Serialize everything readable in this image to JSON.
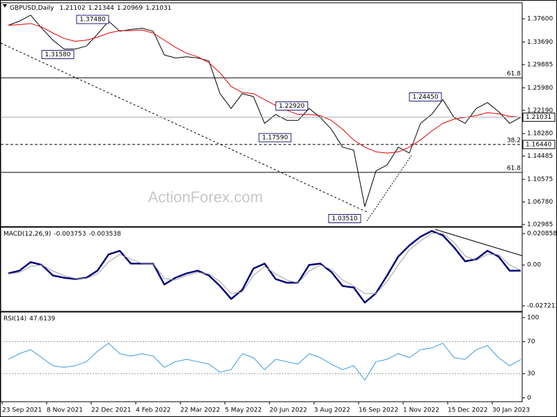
{
  "chart_data": [
    {
      "type": "line",
      "title": "GBPUSD,Daily",
      "ohlc": [
        1.21102,
        1.21344,
        1.20969,
        1.21031
      ],
      "watermark": "ActionForex.com",
      "ylim": [
        1.0275,
        1.4017
      ],
      "yticks": [
        {
          "value": 1.376,
          "label": "1.37600"
        },
        {
          "value": 1.3369,
          "label": "1.33690"
        },
        {
          "value": 1.29885,
          "label": "1.29885"
        },
        {
          "value": 1.2598,
          "label": "1.25980"
        },
        {
          "value": 1.2219,
          "label": "1.22190"
        },
        {
          "value": 1.1828,
          "label": "1.18280"
        },
        {
          "value": 1.14485,
          "label": "1.14485"
        },
        {
          "value": 1.10575,
          "label": "1.10575"
        },
        {
          "value": 1.0678,
          "label": "1.06780"
        },
        {
          "value": 1.02985,
          "label": "1.02985"
        }
      ],
      "series": [
        {
          "name": "Close",
          "color": "#000000",
          "values": [
            1.365,
            1.372,
            1.382,
            1.36,
            1.34,
            1.325,
            1.325,
            1.33,
            1.35,
            1.372,
            1.355,
            1.358,
            1.36,
            1.355,
            1.315,
            1.31,
            1.312,
            1.31,
            1.305,
            1.25,
            1.225,
            1.25,
            1.245,
            1.2,
            1.215,
            1.205,
            1.205,
            1.225,
            1.21,
            1.19,
            1.16,
            1.155,
            1.06,
            1.12,
            1.13,
            1.16,
            1.15,
            1.2,
            1.215,
            1.24,
            1.21,
            1.2,
            1.225,
            1.235,
            1.22,
            1.2,
            1.21031
          ]
        },
        {
          "name": "MA",
          "color": "#e00000",
          "values": [
            1.365,
            1.366,
            1.368,
            1.362,
            1.352,
            1.343,
            1.338,
            1.34,
            1.345,
            1.352,
            1.356,
            1.356,
            1.357,
            1.352,
            1.34,
            1.328,
            1.318,
            1.312,
            1.302,
            1.285,
            1.262,
            1.252,
            1.25,
            1.24,
            1.23,
            1.222,
            1.215,
            1.215,
            1.213,
            1.205,
            1.19,
            1.172,
            1.16,
            1.152,
            1.15,
            1.152,
            1.16,
            1.172,
            1.187,
            1.2,
            1.207,
            1.21,
            1.213,
            1.218,
            1.216,
            1.212,
            1.21
          ]
        }
      ],
      "annotations": [
        {
          "label": "1.37480",
          "value": 1.3748
        },
        {
          "label": "1.31580",
          "value": 1.3158
        },
        {
          "label": "1.22920",
          "value": 1.2292
        },
        {
          "label": "1.17590",
          "value": 1.1759
        },
        {
          "label": "1.24450",
          "value": 1.2445
        },
        {
          "label": "1.03510",
          "value": 1.0351
        }
      ],
      "levels": [
        {
          "label": "61.8",
          "value": 1.2766,
          "style": "solid"
        },
        {
          "label": "38.2",
          "value": 1.1644,
          "style": "dashed"
        },
        {
          "label": "61.8",
          "value": 1.1176,
          "style": "solid"
        }
      ],
      "markers": [
        {
          "value": 1.1644,
          "label": "1.16440"
        }
      ]
    },
    {
      "type": "line",
      "title": "MACD(12,26,9)",
      "ylim": [
        -0.0304,
        0.0246
      ],
      "yticks": [
        0.020858,
        {
          "value": 0,
          "label": "0.00"
        },
        -0.027213
      ],
      "series": [
        {
          "name": "MACD",
          "color": "#00007a",
          "values": [
            -0.0056,
            -0.0038,
            0.0019,
            0,
            -0.007,
            -0.0085,
            -0.0094,
            -0.0085,
            -0.0038,
            0.007,
            0.0094,
            0.0009,
            0.0009,
            0.0009,
            -0.013,
            -0.0085,
            -0.0056,
            -0.0038,
            -0.007,
            -0.014,
            -0.0226,
            -0.0165,
            -0.0024,
            0.0009,
            -0.0094,
            -0.0118,
            -0.0118,
            0,
            0.0009,
            -0.0047,
            -0.014,
            -0.015,
            -0.025,
            -0.0188,
            -0.007,
            0.0056,
            0.013,
            0.0188,
            0.0226,
            0.0197,
            0.0118,
            0.0024,
            0.0038,
            0.0094,
            0.0056,
            -0.0038,
            -0.003753
          ]
        },
        {
          "name": "Signal",
          "color": "#a0a0a0",
          "values": [
            -0.006,
            -0.005,
            -0.001,
            0,
            -0.004,
            -0.007,
            -0.009,
            -0.009,
            -0.006,
            0.002,
            0.007,
            0.004,
            0.001,
            0.001,
            -0.009,
            -0.01,
            -0.007,
            -0.005,
            -0.006,
            -0.011,
            -0.019,
            -0.018,
            -0.007,
            -0.001,
            -0.006,
            -0.01,
            -0.012,
            -0.004,
            0,
            -0.003,
            -0.01,
            -0.014,
            -0.019,
            -0.019,
            -0.011,
            0,
            0.01,
            0.016,
            0.021,
            0.021,
            0.015,
            0.006,
            0.003,
            0.007,
            0.007,
            0,
            -0.003538
          ]
        }
      ]
    },
    {
      "type": "line",
      "title": "RSI(14)",
      "ylim": [
        -4,
        106
      ],
      "yticks": [
        100,
        70,
        30,
        0
      ],
      "guides": [
        70,
        30
      ],
      "categories": [
        null,
        "23 Sep 2021",
        null,
        null,
        null,
        "8 Nov 2021",
        null,
        null,
        null,
        "22 Dec 2021",
        null,
        null,
        null,
        "4 Feb 2022",
        null,
        null,
        null,
        "22 Mar 2022",
        null,
        null,
        null,
        "5 May 2022",
        null,
        null,
        null,
        "20 Jun 2022",
        null,
        null,
        null,
        "3 Aug 2022",
        null,
        null,
        null,
        "16 Sep 2022",
        null,
        null,
        null,
        "1 Nov 2022",
        null,
        null,
        null,
        "15 Dec 2022",
        null,
        null,
        null,
        "30 Jan 2023",
        null
      ],
      "series": [
        {
          "name": "RSI",
          "color": "#3b9ae1",
          "values": [
            48,
            55,
            60,
            50,
            40,
            38,
            40,
            45,
            58,
            68,
            55,
            52,
            55,
            52,
            38,
            45,
            48,
            45,
            42,
            32,
            35,
            55,
            50,
            35,
            48,
            45,
            42,
            55,
            50,
            42,
            35,
            40,
            22,
            45,
            48,
            55,
            50,
            60,
            62,
            68,
            50,
            48,
            60,
            65,
            50,
            40,
            47.6139
          ]
        }
      ]
    }
  ]
}
